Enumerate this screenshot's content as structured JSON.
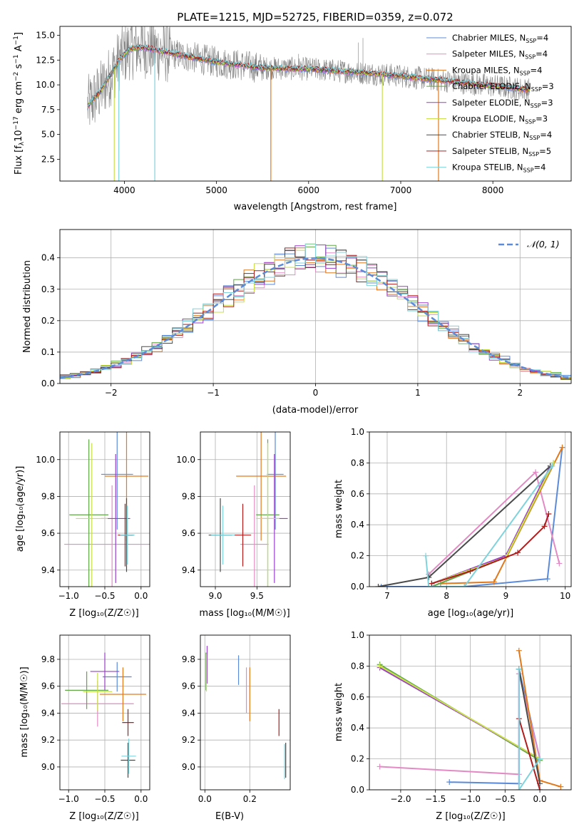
{
  "colors": {
    "Chabrier MILES": "#5b8bd9",
    "Salpeter MILES": "#e38ac5",
    "Kroupa MILES": "#e07a1f",
    "Chabrier ELODIE": "#5fa845",
    "Salpeter ELODIE": "#9a3ec9",
    "Kroupa ELODIE": "#c8e04a",
    "Chabrier STELIB": "#4a4a4a",
    "Salpeter STELIB": "#b01c1c",
    "Kroupa STELIB": "#7fd3dc",
    "data": "#808080",
    "gauss": "#5b8bd9"
  },
  "chart_data": [
    {
      "type": "line",
      "title": "PLATE=1215, MJD=52725, FIBERID=0359, z=0.072",
      "xlabel": "wavelength [Angstrom, rest frame]",
      "ylabel": "Flux [f_λ 10^-17 erg cm^-2 s^-1 A^-1]",
      "xlim": [
        3300,
        8850
      ],
      "ylim": [
        0.3,
        15.9
      ],
      "xticks": [
        4000,
        5000,
        6000,
        7000,
        8000
      ],
      "yticks": [
        2.5,
        5.0,
        7.5,
        10.0,
        12.5,
        15.0
      ],
      "legend": {
        "position": "top-right",
        "entries": [
          {
            "name": "Chabrier MILES",
            "nssp": "4"
          },
          {
            "name": "Salpeter MILES",
            "nssp": "4"
          },
          {
            "name": "Kroupa MILES",
            "nssp": "4"
          },
          {
            "name": "Chabrier ELODIE",
            "nssp": "3"
          },
          {
            "name": "Salpeter ELODIE",
            "nssp": "3"
          },
          {
            "name": "Kroupa ELODIE",
            "nssp": "3"
          },
          {
            "name": "Chabrier STELIB",
            "nssp": "4"
          },
          {
            "name": "Salpeter STELIB",
            "nssp": "5"
          },
          {
            "name": "Kroupa STELIB",
            "nssp": "4"
          }
        ]
      },
      "continuum_x": [
        3600,
        3750,
        3850,
        3950,
        4050,
        4200,
        4500,
        5000,
        5500,
        6000,
        6500,
        7000,
        7500,
        8000,
        8400
      ],
      "continuum_y": [
        7.8,
        9.5,
        11.0,
        12.6,
        13.6,
        13.8,
        13.2,
        12.3,
        11.7,
        11.6,
        11.3,
        10.9,
        10.4,
        9.9,
        9.5
      ]
    },
    {
      "type": "step",
      "xlabel": "(data-model)/error",
      "ylabel": "Normed distribution",
      "xlim": [
        -2.5,
        2.5
      ],
      "ylim": [
        0,
        0.49
      ],
      "xticks": [
        -2,
        -1,
        0,
        1,
        2
      ],
      "yticks": [
        0.0,
        0.1,
        0.2,
        0.3,
        0.4
      ],
      "legend": {
        "position": "top-right",
        "label": "𝒩(0, 1)"
      },
      "bin_edges_start": -2.5,
      "bin_width": 0.1,
      "grid": true
    },
    {
      "type": "scatter",
      "xlabel": "Z [log10(Z/Z☉)]",
      "ylabel": "age  [log10(age/yr)]",
      "xlim": [
        -1.12,
        0.12
      ],
      "ylim": [
        9.31,
        10.15
      ],
      "xticks": [
        -1.0,
        -0.5,
        0.0
      ],
      "yticks": [
        9.4,
        9.6,
        9.8,
        10.0
      ],
      "grid": true,
      "points": [
        {
          "s": "Chabrier MILES",
          "x": -0.33,
          "y": 9.92,
          "ex": 0.22,
          "ey": 0.3
        },
        {
          "s": "Salpeter MILES",
          "x": -0.4,
          "y": 9.54,
          "ex": 0.66,
          "ey": 0.32
        },
        {
          "s": "Kroupa MILES",
          "x": -0.2,
          "y": 9.91,
          "ex": 0.3,
          "ey": 0.35
        },
        {
          "s": "Chabrier ELODIE",
          "x": -0.72,
          "y": 9.7,
          "ex": 0.27,
          "ey": 0.41
        },
        {
          "s": "Salpeter ELODIE",
          "x": -0.35,
          "y": 9.68,
          "ex": 0.2,
          "ey": 0.35
        },
        {
          "s": "Kroupa ELODIE",
          "x": -0.68,
          "y": 9.68,
          "ex": 0.22,
          "ey": 0.41
        },
        {
          "s": "Chabrier STELIB",
          "x": -0.2,
          "y": 9.59,
          "ex": 0.1,
          "ey": 0.2
        },
        {
          "s": "Salpeter STELIB",
          "x": -0.22,
          "y": 9.59,
          "ex": 0.1,
          "ey": 0.17
        },
        {
          "s": "Kroupa STELIB",
          "x": -0.19,
          "y": 9.59,
          "ex": 0.1,
          "ey": 0.16
        }
      ]
    },
    {
      "type": "scatter",
      "xlabel": "mass [log10(M/M☉)]",
      "ylabel": "",
      "xlim": [
        8.82,
        9.9
      ],
      "ylim": [
        9.31,
        10.15
      ],
      "xticks": [
        9.0,
        9.5
      ],
      "yticks": [
        9.4,
        9.6,
        9.8,
        10.0
      ],
      "grid": true,
      "points": [
        {
          "s": "Chabrier MILES",
          "x": 9.72,
          "y": 9.92,
          "ex": 0.1,
          "ey": 0.3
        },
        {
          "s": "Salpeter MILES",
          "x": 9.47,
          "y": 9.54,
          "ex": 0.17,
          "ey": 0.32
        },
        {
          "s": "Kroupa MILES",
          "x": 9.55,
          "y": 9.91,
          "ex": 0.3,
          "ey": 0.35
        },
        {
          "s": "Chabrier ELODIE",
          "x": 9.63,
          "y": 9.7,
          "ex": 0.14,
          "ey": 0.41
        },
        {
          "s": "Salpeter ELODIE",
          "x": 9.71,
          "y": 9.68,
          "ex": 0.16,
          "ey": 0.35
        },
        {
          "s": "Kroupa ELODIE",
          "x": 9.63,
          "y": 9.68,
          "ex": 0.14,
          "ey": 0.41
        },
        {
          "s": "Chabrier STELIB",
          "x": 9.06,
          "y": 9.59,
          "ex": 0.14,
          "ey": 0.2
        },
        {
          "s": "Salpeter STELIB",
          "x": 9.33,
          "y": 9.59,
          "ex": 0.1,
          "ey": 0.17
        },
        {
          "s": "Kroupa STELIB",
          "x": 9.09,
          "y": 9.59,
          "ex": 0.14,
          "ey": 0.16
        }
      ]
    },
    {
      "type": "line",
      "xlabel": "age  [log10(age/yr)]",
      "ylabel": "mass weight",
      "xlim": [
        6.7,
        10.1
      ],
      "ylim": [
        0,
        1.0
      ],
      "xticks": [
        7,
        8,
        9,
        10
      ],
      "yticks": [
        0.0,
        0.2,
        0.4,
        0.6,
        0.8,
        1.0
      ],
      "grid": true,
      "series": [
        {
          "s": "Chabrier MILES",
          "x": [
            6.9,
            8.3,
            9.7,
            9.95
          ],
          "y": [
            0.0,
            0.0,
            0.05,
            0.9
          ]
        },
        {
          "s": "Salpeter MILES",
          "x": [
            7.7,
            9.5,
            9.9
          ],
          "y": [
            0.08,
            0.74,
            0.15
          ]
        },
        {
          "s": "Kroupa MILES",
          "x": [
            7.9,
            8.8,
            9.95
          ],
          "y": [
            0.02,
            0.03,
            0.9
          ]
        },
        {
          "s": "Chabrier ELODIE",
          "x": [
            7.75,
            9.0,
            9.8
          ],
          "y": [
            0.0,
            0.19,
            0.8
          ]
        },
        {
          "s": "Salpeter ELODIE",
          "x": [
            7.75,
            9.0,
            9.75
          ],
          "y": [
            0.02,
            0.2,
            0.78
          ]
        },
        {
          "s": "Kroupa ELODIE",
          "x": [
            7.75,
            9.0,
            9.8
          ],
          "y": [
            0.02,
            0.19,
            0.8
          ]
        },
        {
          "s": "Chabrier STELIB",
          "x": [
            6.85,
            7.7,
            9.75
          ],
          "y": [
            0.0,
            0.06,
            0.78
          ]
        },
        {
          "s": "Salpeter STELIB",
          "x": [
            7.75,
            8.4,
            9.2,
            9.65,
            9.72
          ],
          "y": [
            0.02,
            0.1,
            0.22,
            0.39,
            0.47
          ]
        },
        {
          "s": "Kroupa STELIB",
          "x": [
            7.65,
            7.7,
            8.3,
            9.78
          ],
          "y": [
            0.2,
            0.0,
            0.0,
            0.78
          ]
        }
      ]
    },
    {
      "type": "scatter",
      "xlabel": "Z [log10(Z/Z☉)]",
      "ylabel": "mass [log10(M/M☉)]",
      "xlim": [
        -1.12,
        0.12
      ],
      "ylim": [
        8.83,
        9.98
      ],
      "xticks": [
        -1.0,
        -0.5,
        0.0
      ],
      "yticks": [
        9.0,
        9.2,
        9.4,
        9.6,
        9.8
      ],
      "grid": true,
      "points": [
        {
          "s": "Chabrier MILES",
          "x": -0.33,
          "y": 9.67,
          "ex": 0.2,
          "ey": 0.11
        },
        {
          "s": "Salpeter MILES",
          "x": -0.6,
          "y": 9.47,
          "ex": 0.5,
          "ey": 0.17
        },
        {
          "s": "Kroupa MILES",
          "x": -0.25,
          "y": 9.54,
          "ex": 0.32,
          "ey": 0.2
        },
        {
          "s": "Chabrier ELODIE",
          "x": -0.75,
          "y": 9.57,
          "ex": 0.3,
          "ey": 0.14
        },
        {
          "s": "Salpeter ELODIE",
          "x": -0.5,
          "y": 9.71,
          "ex": 0.2,
          "ey": 0.14
        },
        {
          "s": "Kroupa ELODIE",
          "x": -0.6,
          "y": 9.56,
          "ex": 0.2,
          "ey": 0.14
        },
        {
          "s": "Chabrier STELIB",
          "x": -0.18,
          "y": 9.05,
          "ex": 0.1,
          "ey": 0.13
        },
        {
          "s": "Salpeter STELIB",
          "x": -0.18,
          "y": 9.33,
          "ex": 0.08,
          "ey": 0.1
        },
        {
          "s": "Kroupa STELIB",
          "x": -0.17,
          "y": 9.08,
          "ex": 0.1,
          "ey": 0.13
        }
      ]
    },
    {
      "type": "scatter",
      "xlabel": "E(B-V)",
      "ylabel": "",
      "xlim": [
        -0.02,
        0.38
      ],
      "ylim": [
        8.83,
        9.98
      ],
      "xticks": [
        0.0,
        0.2
      ],
      "yticks": [
        9.0,
        9.2,
        9.4,
        9.6,
        9.8
      ],
      "grid": true,
      "points": [
        {
          "s": "Chabrier MILES",
          "x": 0.15,
          "y": 9.72,
          "ex": 0,
          "ey": 0.11
        },
        {
          "s": "Salpeter MILES",
          "x": 0.185,
          "y": 9.57,
          "ex": 0,
          "ey": 0.17
        },
        {
          "s": "Kroupa MILES",
          "x": 0.2,
          "y": 9.54,
          "ex": 0,
          "ey": 0.2
        },
        {
          "s": "Chabrier ELODIE",
          "x": 0.005,
          "y": 9.71,
          "ex": 0,
          "ey": 0.14
        },
        {
          "s": "Salpeter ELODIE",
          "x": 0.01,
          "y": 9.76,
          "ex": 0,
          "ey": 0.14
        },
        {
          "s": "Kroupa ELODIE",
          "x": 0.007,
          "y": 9.7,
          "ex": 0,
          "ey": 0.14
        },
        {
          "s": "Chabrier STELIB",
          "x": 0.36,
          "y": 9.05,
          "ex": 0,
          "ey": 0.13
        },
        {
          "s": "Salpeter STELIB",
          "x": 0.33,
          "y": 9.33,
          "ex": 0,
          "ey": 0.1
        },
        {
          "s": "Kroupa STELIB",
          "x": 0.355,
          "y": 9.04,
          "ex": 0,
          "ey": 0.13
        }
      ]
    },
    {
      "type": "line",
      "xlabel": "Z [log10(Z/Z☉)]",
      "ylabel": "mass weight",
      "xlim": [
        -2.45,
        0.45
      ],
      "ylim": [
        0,
        1.0
      ],
      "xticks": [
        -2.0,
        -1.5,
        -1.0,
        -0.5,
        0.0
      ],
      "yticks": [
        0.0,
        0.2,
        0.4,
        0.6,
        0.8,
        1.0
      ],
      "grid": true,
      "series": [
        {
          "s": "Chabrier MILES",
          "x": [
            -1.3,
            -0.3,
            -0.3,
            0.0
          ],
          "y": [
            0.05,
            0.04,
            0.78,
            0.2
          ]
        },
        {
          "s": "Salpeter MILES",
          "x": [
            -2.3,
            -0.3,
            -0.3,
            0.0
          ],
          "y": [
            0.15,
            0.1,
            0.75,
            0.2
          ]
        },
        {
          "s": "Kroupa MILES",
          "x": [
            -0.3,
            0.0,
            0.3
          ],
          "y": [
            0.9,
            0.06,
            0.02
          ]
        },
        {
          "s": "Chabrier ELODIE",
          "x": [
            -2.3,
            0.0
          ],
          "y": [
            0.81,
            0.19
          ]
        },
        {
          "s": "Salpeter ELODIE",
          "x": [
            -2.3,
            0.0
          ],
          "y": [
            0.79,
            0.2
          ]
        },
        {
          "s": "Kroupa ELODIE",
          "x": [
            -2.3,
            0.0
          ],
          "y": [
            0.8,
            0.2
          ]
        },
        {
          "s": "Chabrier STELIB",
          "x": [
            -0.3,
            0.0
          ],
          "y": [
            0.78,
            0.04
          ]
        },
        {
          "s": "Salpeter STELIB",
          "x": [
            -0.3,
            0.0
          ],
          "y": [
            0.46,
            0.0
          ]
        },
        {
          "s": "Kroupa STELIB",
          "x": [
            -0.3,
            -0.3,
            0.0
          ],
          "y": [
            0.78,
            0.0,
            0.2
          ]
        }
      ]
    }
  ],
  "text": {
    "title": "PLATE=1215, MJD=52725, FIBERID=0359, z=0.072",
    "p1_xlabel": "wavelength [Angstrom, rest frame]",
    "p2_xlabel": "(data-model)/error",
    "p2_ylabel": "Normed distribution",
    "p2_legend": "𝒩(0, 1)",
    "p3_xlabel": "Z [log₁₀(Z/Z☉)]",
    "p3_ylabel": "age  [log₁₀(age/yr)]",
    "p4_xlabel": "mass [log₁₀(M/M☉)]",
    "p5_xlabel": "age  [log₁₀(age/yr)]",
    "p5_ylabel": "mass weight",
    "p6_xlabel": "Z [log₁₀(Z/Z☉)]",
    "p6_ylabel": "mass [log₁₀(M/M☉)]",
    "p7_xlabel": "E(B-V)",
    "p8_xlabel": "Z [log₁₀(Z/Z☉)]",
    "p8_ylabel": "mass weight"
  }
}
